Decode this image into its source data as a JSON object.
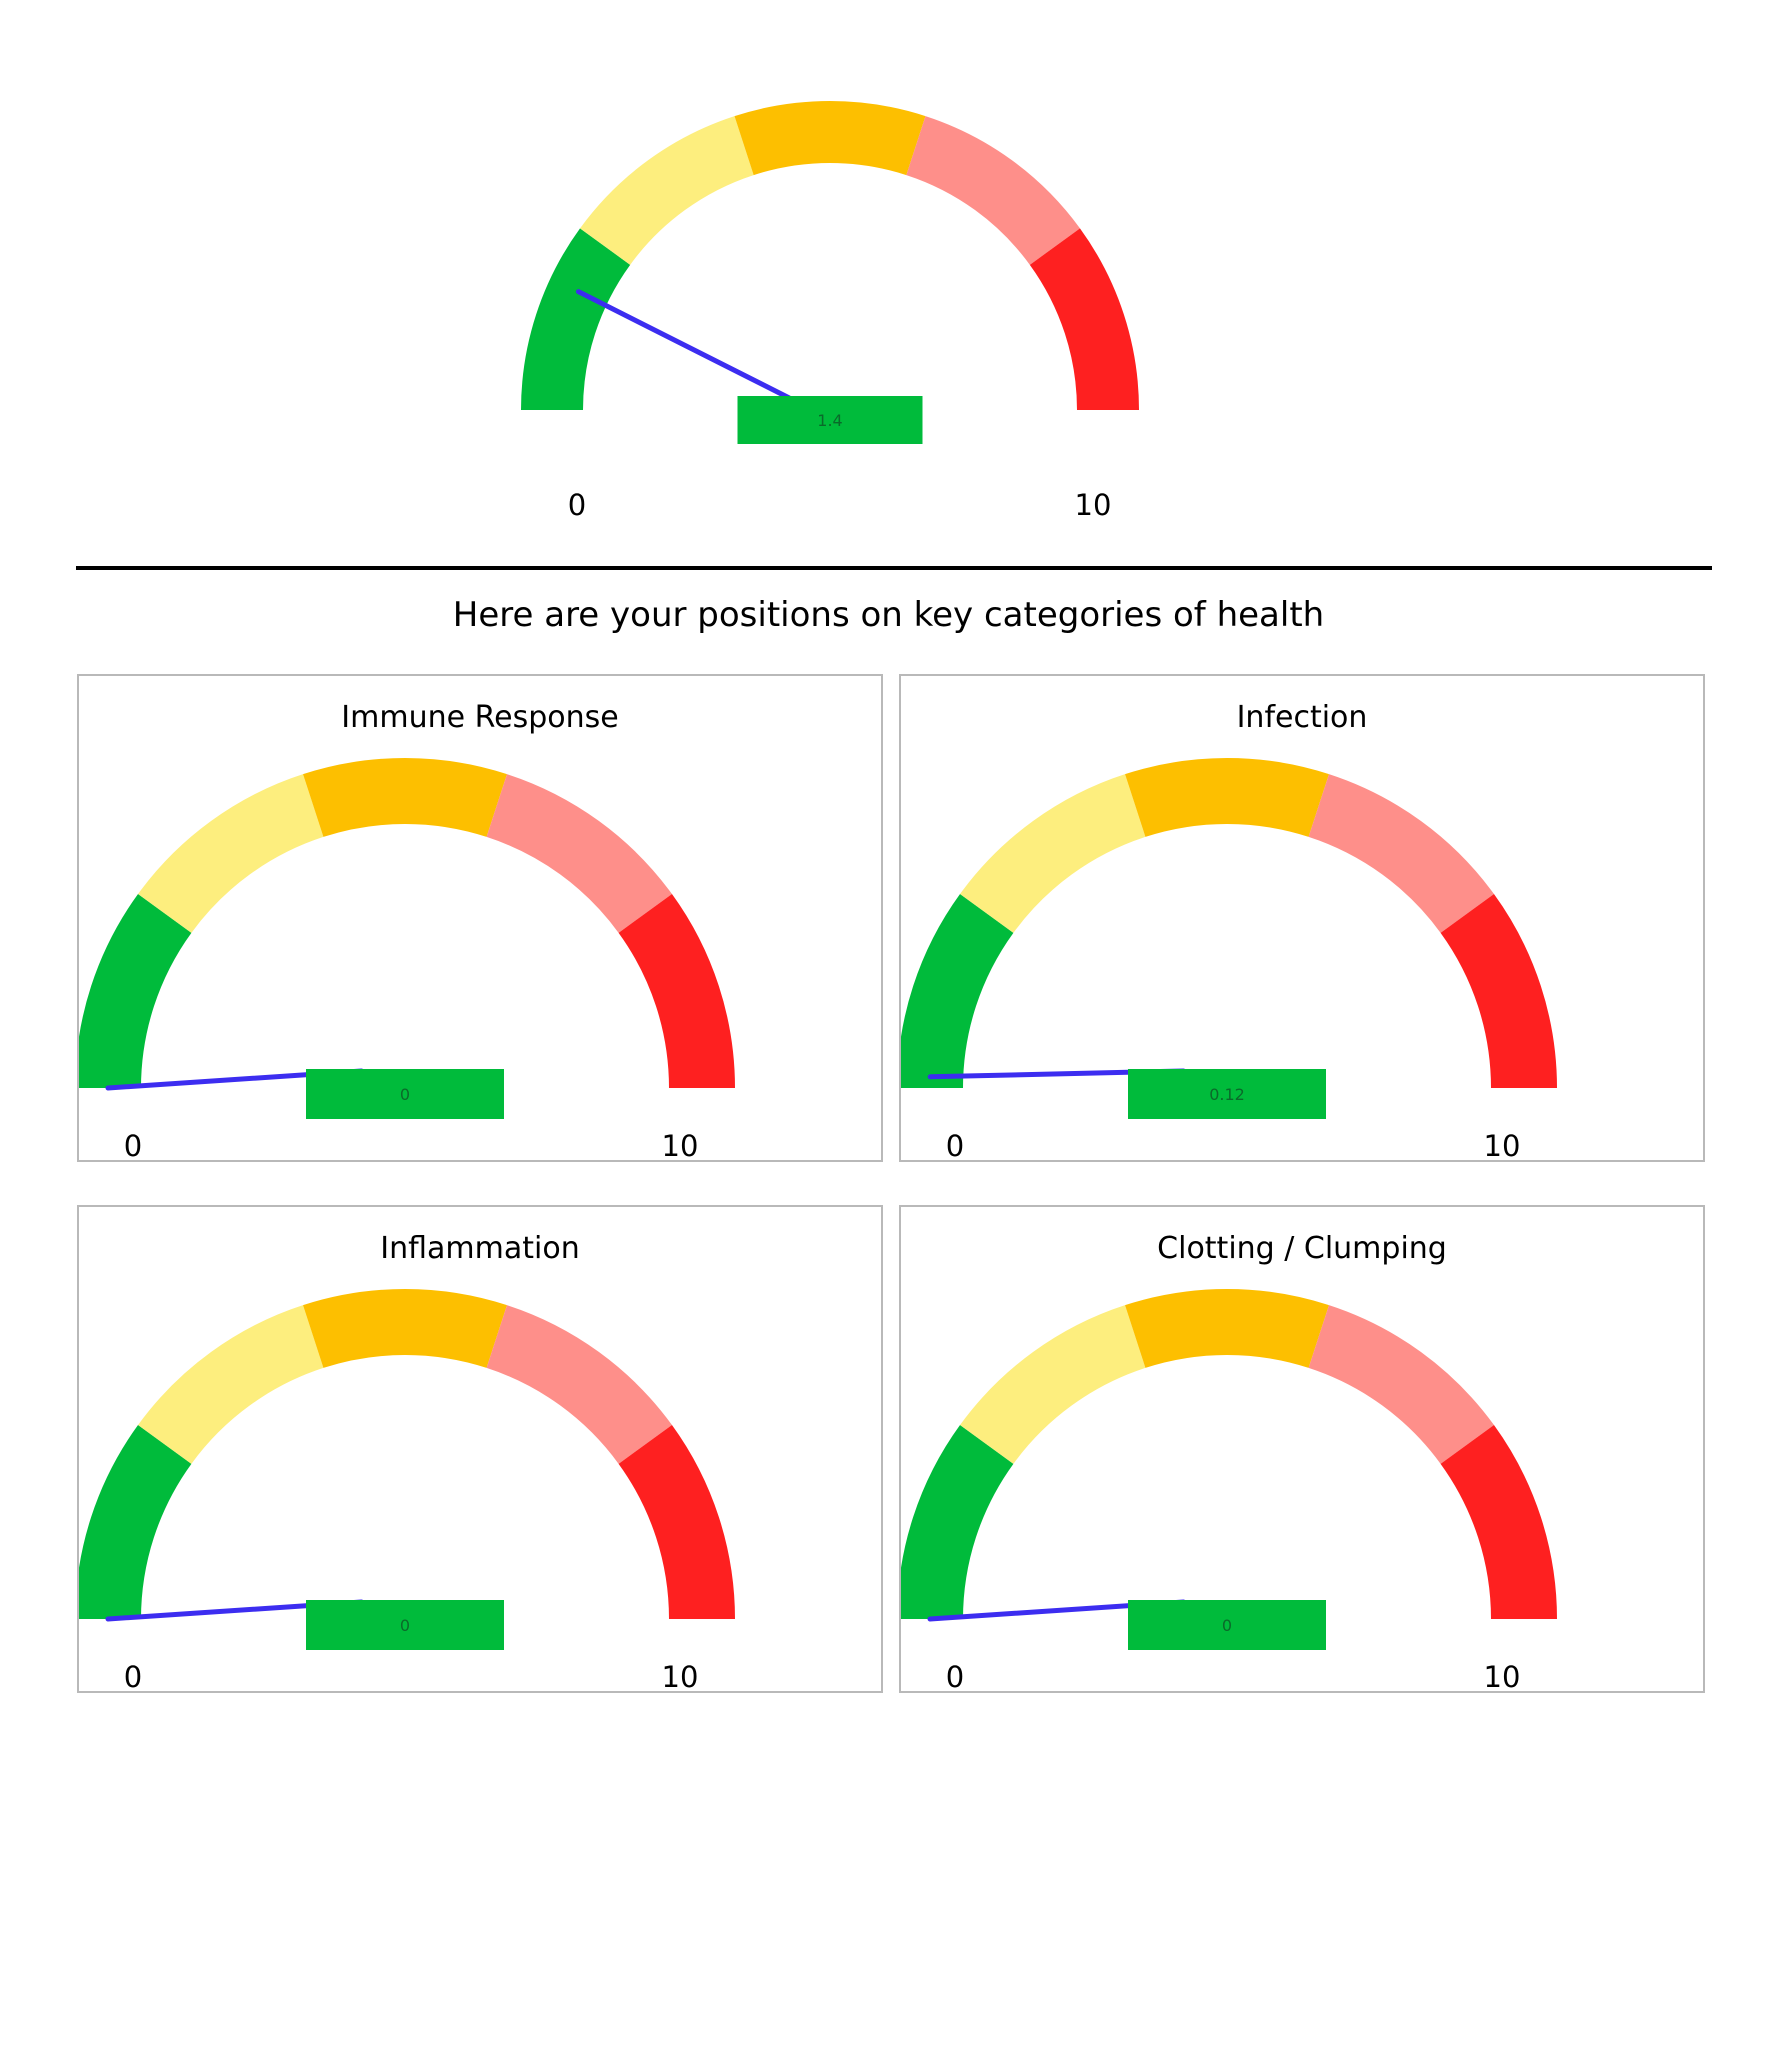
{
  "subtitle": "Here are your positions on key categories of health",
  "colors": {
    "bands": [
      "#00bb3b",
      "#fdee7e",
      "#fdbf00",
      "#fe8f8a",
      "#fe2020"
    ],
    "needle": "#3c2df0",
    "value_box": "#00bb3b"
  },
  "chart_data": [
    {
      "type": "gauge",
      "id": "overall",
      "title": "",
      "min": 0,
      "max": 10,
      "value": 1.4,
      "value_label": "1.4",
      "min_label": "0",
      "max_label": "10"
    },
    {
      "type": "gauge",
      "id": "immune",
      "title": "Immune Response",
      "min": 0,
      "max": 10,
      "value": 0,
      "value_label": "0",
      "min_label": "0",
      "max_label": "10"
    },
    {
      "type": "gauge",
      "id": "infection",
      "title": "Infection",
      "min": 0,
      "max": 10,
      "value": 0.12,
      "value_label": "0.12",
      "min_label": "0",
      "max_label": "10"
    },
    {
      "type": "gauge",
      "id": "inflammation",
      "title": "Inflammation",
      "min": 0,
      "max": 10,
      "value": 0,
      "value_label": "0",
      "min_label": "0",
      "max_label": "10"
    },
    {
      "type": "gauge",
      "id": "clotting",
      "title": "Clotting / Clumping",
      "min": 0,
      "max": 10,
      "value": 0,
      "value_label": "0",
      "min_label": "0",
      "max_label": "10"
    }
  ]
}
